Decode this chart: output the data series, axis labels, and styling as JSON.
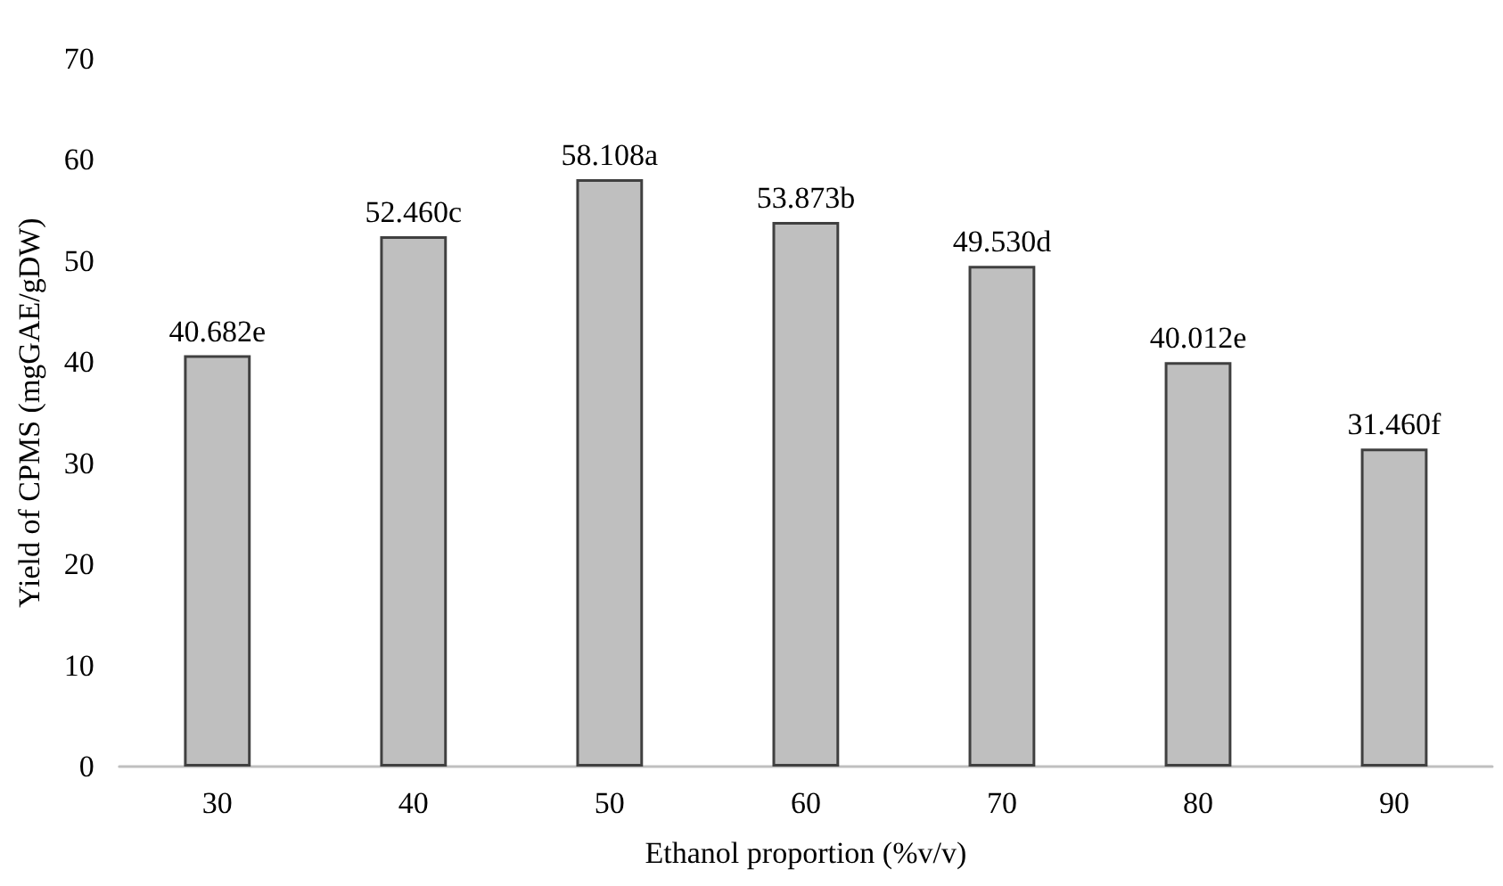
{
  "chart_data": {
    "type": "bar",
    "xlabel": "Ethanol proportion (%v/v)",
    "ylabel": "Yield of CPMS (mgGAE/gDW)",
    "categories": [
      "30",
      "40",
      "50",
      "60",
      "70",
      "80",
      "90"
    ],
    "values": [
      40.682,
      52.46,
      58.108,
      53.873,
      49.53,
      40.012,
      31.46
    ],
    "value_labels": [
      "40.682e",
      "52.460c",
      "58.108a",
      "53.873b",
      "49.530d",
      "40.012e",
      "31.460f"
    ],
    "color": "#bfbfbf",
    "ylim": [
      0,
      70
    ],
    "yticks": [
      0,
      10,
      20,
      30,
      40,
      50,
      60,
      70
    ],
    "grid": false
  }
}
